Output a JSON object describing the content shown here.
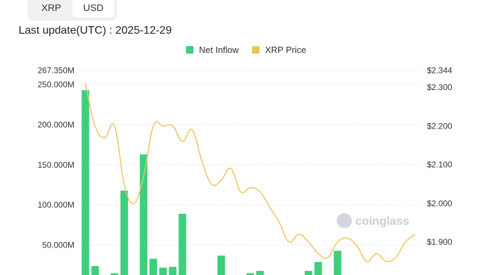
{
  "toggle": {
    "options": [
      "XRP",
      "USD"
    ],
    "selected": "USD"
  },
  "last_update": "Last update(UTC) : 2025-12-29",
  "legend": [
    {
      "label": "Net Inflow",
      "color": "#3ecf7e"
    },
    {
      "label": "XRP Price",
      "color": "#f0c35a"
    }
  ],
  "watermark": "coinglass",
  "chart_data": {
    "type": "bar",
    "y_left": {
      "ticks": [
        "267.350M",
        "250.000M",
        "200.000M",
        "150.000M",
        "100.000M",
        "50.000M"
      ],
      "tick_values": [
        267.35,
        250,
        200,
        150,
        100,
        50
      ]
    },
    "y_right": {
      "ticks": [
        "$2.344",
        "$2.300",
        "$2.200",
        "$2.100",
        "$2.000",
        "$1.900"
      ],
      "tick_values": [
        2.344,
        2.3,
        2.2,
        2.1,
        2.0,
        1.9
      ]
    },
    "x": [
      0,
      1,
      2,
      3,
      4,
      5,
      6,
      7,
      8,
      9,
      10,
      11,
      12,
      13,
      14,
      15,
      16,
      17,
      18,
      19,
      20,
      21,
      22,
      23,
      24,
      25,
      26,
      27,
      28,
      29,
      30,
      31,
      32,
      33,
      34
    ],
    "series": [
      {
        "name": "Net Inflow",
        "color": "#3ecf7e",
        "values": [
          243,
          24,
          0,
          15,
          118,
          0,
          163,
          33,
          22,
          23,
          89,
          0,
          0,
          0,
          37,
          0,
          0,
          15,
          18,
          0,
          0,
          0,
          0,
          18,
          29,
          0,
          43,
          0,
          0,
          0,
          0,
          0,
          0,
          0,
          0
        ]
      },
      {
        "name": "XRP Price",
        "color": "#f0c35a",
        "values": [
          2.31,
          2.2,
          2.17,
          2.2,
          2.05,
          2.0,
          2.07,
          2.2,
          2.2,
          2.2,
          2.16,
          2.19,
          2.11,
          2.05,
          2.06,
          2.09,
          2.03,
          2.04,
          2.03,
          1.99,
          1.95,
          1.9,
          1.92,
          1.9,
          1.87,
          1.86,
          1.9,
          1.91,
          1.89,
          1.85,
          1.87,
          1.85,
          1.86,
          1.9,
          1.92
        ]
      }
    ]
  }
}
